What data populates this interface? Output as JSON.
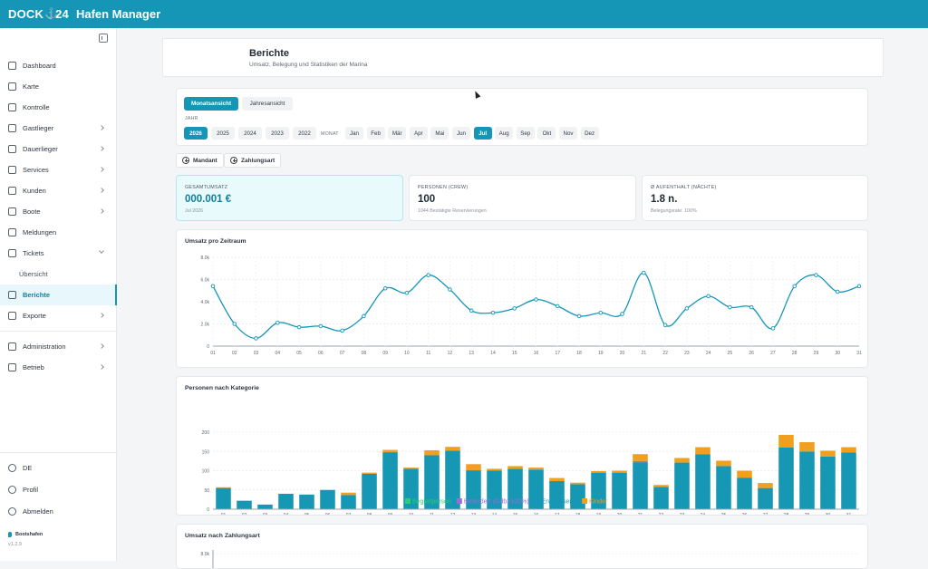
{
  "app": {
    "logo_left": "DOCK",
    "logo_right": "24",
    "name": "Hafen Manager"
  },
  "sidebar": {
    "items": [
      {
        "label": "Dashboard",
        "icon": "grid-icon",
        "chev": ""
      },
      {
        "label": "Karte",
        "icon": "map-icon",
        "chev": ""
      },
      {
        "label": "Kontrolle",
        "icon": "clipboard-icon",
        "chev": ""
      },
      {
        "label": "Gastlieger",
        "icon": "calendar-icon",
        "chev": "right"
      },
      {
        "label": "Dauerlieger",
        "icon": "anchor-icon",
        "chev": "right"
      },
      {
        "label": "Services",
        "icon": "document-icon",
        "chev": "right"
      },
      {
        "label": "Kunden",
        "icon": "users-icon",
        "chev": "right"
      },
      {
        "label": "Boote",
        "icon": "boat-icon",
        "chev": "right"
      },
      {
        "label": "Meldungen",
        "icon": "inbox-icon",
        "chev": ""
      },
      {
        "label": "Tickets",
        "icon": "ticket-icon",
        "chev": "down"
      },
      {
        "label": "Übersicht",
        "icon": "",
        "chev": "",
        "sub": true
      },
      {
        "label": "Berichte",
        "icon": "bar-chart-icon",
        "chev": "",
        "active": true
      },
      {
        "label": "Exporte",
        "icon": "export-icon",
        "chev": "right"
      },
      {
        "label": "Administration",
        "icon": "gear-icon",
        "chev": "right",
        "sep": true
      },
      {
        "label": "Betrieb",
        "icon": "wrench-icon",
        "chev": "right"
      }
    ],
    "bottom": [
      {
        "label": "DE",
        "icon": "globe-icon"
      },
      {
        "label": "Profil",
        "icon": "user-icon"
      },
      {
        "label": "Abmelden",
        "icon": "logout-icon"
      }
    ],
    "harbor": "Bootshafen",
    "version": "v1.2.9"
  },
  "page": {
    "title": "Berichte",
    "subtitle": "Umsatz, Belegung und Statistiken der Marina"
  },
  "view_toggle": {
    "monthly": "Monatsansicht",
    "yearly": "Jahresansicht"
  },
  "year_label": "JAHR",
  "years": [
    "2026",
    "2025",
    "2024",
    "2023",
    "2022"
  ],
  "selected_year": "2026",
  "month_label": "MONAT",
  "months": [
    "Jan",
    "Feb",
    "Mär",
    "Apr",
    "Mai",
    "Jun",
    "Jul",
    "Aug",
    "Sep",
    "Okt",
    "Nov",
    "Dez"
  ],
  "selected_month": "Jul",
  "filters": {
    "mandant": "Mandant",
    "zahlungsart": "Zahlungsart"
  },
  "stats": [
    {
      "label": "GESAMTUMSATZ",
      "value": "000.001 €",
      "sub": "Jul 2026"
    },
    {
      "label": "PERSONEN (CREW)",
      "value": "100",
      "sub": "1044 Bestätigte Reservierungen"
    },
    {
      "label": "Ø AUFENTHALT (NÄCHTE)",
      "value": "1.8 n.",
      "sub": "Belegungsrate: 100%"
    }
  ],
  "colors": {
    "accent": "#1596b7",
    "begleit": "#2ecc71",
    "behindert": "#9b6bd6",
    "erwachsene": "#1697b3",
    "kinder": "#f0a020"
  },
  "chart_data": [
    {
      "type": "line",
      "title": "Umsatz pro Zeitraum",
      "x": [
        "01",
        "02",
        "03",
        "04",
        "05",
        "06",
        "07",
        "08",
        "09",
        "10",
        "11",
        "12",
        "13",
        "14",
        "15",
        "16",
        "17",
        "18",
        "19",
        "20",
        "21",
        "22",
        "23",
        "24",
        "25",
        "26",
        "27",
        "28",
        "29",
        "30",
        "31"
      ],
      "y": [
        5400,
        2000,
        700,
        2100,
        1700,
        1800,
        1400,
        2700,
        5200,
        4800,
        6400,
        5100,
        3200,
        3000,
        3400,
        4200,
        3600,
        2700,
        3000,
        2900,
        6600,
        1900,
        3400,
        4500,
        3500,
        3500,
        1600,
        5400,
        6400,
        4900,
        5400
      ],
      "ylim": [
        0,
        8000
      ],
      "yticks": [
        "0",
        "2.0k",
        "4.0k",
        "6.0k",
        "8.0k"
      ],
      "grid": true
    },
    {
      "type": "bar",
      "stacked": true,
      "title": "Personen nach Kategorie",
      "categories": [
        "01",
        "02",
        "03",
        "04",
        "05",
        "06",
        "07",
        "08",
        "09",
        "10",
        "11",
        "12",
        "13",
        "14",
        "15",
        "16",
        "17",
        "18",
        "19",
        "20",
        "21",
        "22",
        "23",
        "24",
        "25",
        "26",
        "27",
        "28",
        "29",
        "30",
        "31"
      ],
      "series": [
        {
          "name": "Begleitperson",
          "values": [
            0,
            0,
            0,
            0,
            0,
            0,
            0,
            0,
            0,
            0,
            0,
            0,
            0,
            0,
            0,
            0,
            0,
            0,
            0,
            0,
            0,
            0,
            0,
            0,
            0,
            0,
            0,
            0,
            0,
            0,
            0
          ]
        },
        {
          "name": "Behindert (Gdb>100%)",
          "values": [
            0,
            0,
            0,
            0,
            0,
            0,
            0,
            0,
            0,
            0,
            0,
            0,
            0,
            0,
            0,
            0,
            0,
            0,
            0,
            0,
            3,
            0,
            0,
            0,
            0,
            0,
            0,
            0,
            0,
            0,
            0
          ]
        },
        {
          "name": "Erwachsene",
          "values": [
            55,
            22,
            12,
            40,
            38,
            50,
            37,
            92,
            148,
            105,
            140,
            152,
            101,
            100,
            105,
            103,
            73,
            65,
            95,
            95,
            122,
            58,
            121,
            143,
            112,
            82,
            55,
            160,
            150,
            137,
            147
          ]
        },
        {
          "name": "Kinder",
          "values": [
            2,
            0,
            0,
            0,
            0,
            0,
            6,
            3,
            6,
            3,
            13,
            10,
            16,
            5,
            7,
            5,
            8,
            4,
            4,
            5,
            18,
            5,
            12,
            18,
            14,
            18,
            13,
            33,
            24,
            15,
            14
          ]
        }
      ],
      "ylim": [
        0,
        200
      ],
      "yticks": [
        "0",
        "50",
        "100",
        "150",
        "200"
      ],
      "legend": "bottom"
    },
    {
      "type": "line",
      "title": "Umsatz nach Zahlungsart",
      "yticks": [
        "8.0k"
      ]
    }
  ]
}
